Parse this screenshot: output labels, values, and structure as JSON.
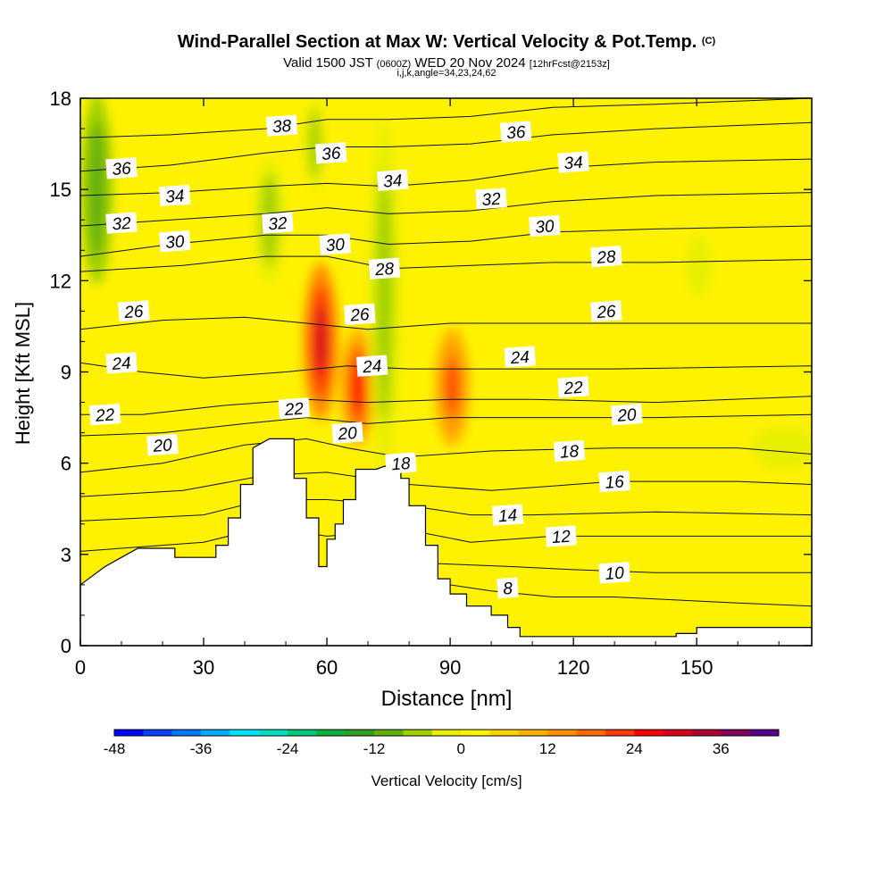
{
  "title": "Wind-Parallel Section at Max W: Vertical Velocity & Pot.Temp.",
  "title_tag": "(C)",
  "subtitle_a": "Valid 1500 JST",
  "subtitle_b": "(0600Z)",
  "subtitle_c": "WED 20 Nov 2024",
  "subtitle_d": "[12hrFcst@2153z]",
  "subtitle2": "i,j,k,angle=34,23,24,62",
  "chart_data": {
    "type": "heatmap",
    "xlabel": "Distance [nm]",
    "ylabel": "Height [Kft MSL]",
    "xlim": [
      0,
      178
    ],
    "ylim": [
      0,
      18
    ],
    "xticks": [
      0,
      30,
      60,
      90,
      120,
      150
    ],
    "yticks": [
      0,
      3,
      6,
      9,
      12,
      15,
      18
    ],
    "colorbar": {
      "label": "Vertical Velocity [cm/s]",
      "min": -48,
      "max": 42,
      "step": 4,
      "ticks": [
        -48,
        -36,
        -24,
        -12,
        0,
        12,
        24,
        36
      ],
      "colors": [
        "#0000ff",
        "#0a3fff",
        "#0077ff",
        "#00aaff",
        "#00e5ff",
        "#00e0c0",
        "#00c878",
        "#10b040",
        "#30a020",
        "#60b010",
        "#a0d000",
        "#e8ef00",
        "#fff200",
        "#ffd200",
        "#ffb000",
        "#ff9000",
        "#ff6a00",
        "#ff3c00",
        "#ff0000",
        "#d8001a",
        "#b00032",
        "#80005a",
        "#58008a"
      ]
    },
    "terrain": [
      [
        0,
        2.0
      ],
      [
        3,
        2.3
      ],
      [
        6,
        2.6
      ],
      [
        10,
        2.9
      ],
      [
        14,
        3.2
      ],
      [
        23,
        3.2
      ],
      [
        23,
        2.9
      ],
      [
        33,
        2.9
      ],
      [
        33,
        3.3
      ],
      [
        36,
        3.3
      ],
      [
        36,
        4.2
      ],
      [
        39,
        4.2
      ],
      [
        39,
        5.3
      ],
      [
        42,
        5.3
      ],
      [
        42,
        6.5
      ],
      [
        46,
        6.8
      ],
      [
        52,
        6.8
      ],
      [
        52,
        5.5
      ],
      [
        55,
        5.5
      ],
      [
        55,
        4.2
      ],
      [
        58,
        4.2
      ],
      [
        58,
        2.6
      ],
      [
        60,
        2.6
      ],
      [
        60,
        3.5
      ],
      [
        62,
        3.5
      ],
      [
        62,
        4.0
      ],
      [
        64,
        4.0
      ],
      [
        64,
        4.8
      ],
      [
        67,
        4.8
      ],
      [
        67,
        5.8
      ],
      [
        72,
        5.8
      ],
      [
        74,
        5.9
      ],
      [
        78,
        5.9
      ],
      [
        78,
        5.5
      ],
      [
        80,
        5.5
      ],
      [
        80,
        4.6
      ],
      [
        84,
        4.6
      ],
      [
        84,
        3.3
      ],
      [
        87,
        3.3
      ],
      [
        87,
        2.2
      ],
      [
        90,
        2.2
      ],
      [
        90,
        1.7
      ],
      [
        94,
        1.7
      ],
      [
        94,
        1.3
      ],
      [
        100,
        1.3
      ],
      [
        100,
        1.0
      ],
      [
        104,
        1.0
      ],
      [
        104,
        0.6
      ],
      [
        107,
        0.6
      ],
      [
        107,
        0.3
      ],
      [
        145,
        0.3
      ],
      [
        145,
        0.4
      ],
      [
        150,
        0.4
      ],
      [
        150,
        0.6
      ],
      [
        178,
        0.6
      ]
    ],
    "theta_contours": [
      {
        "label": "8",
        "line": [
          [
            85,
            2.1
          ],
          [
            100,
            1.8
          ],
          [
            115,
            1.6
          ],
          [
            130,
            1.6
          ],
          [
            145,
            1.5
          ],
          [
            160,
            1.4
          ],
          [
            178,
            1.3
          ]
        ],
        "at": [
          104,
          1.9
        ]
      },
      {
        "label": "10",
        "line": [
          [
            86,
            2.7
          ],
          [
            105,
            2.6
          ],
          [
            120,
            2.5
          ],
          [
            140,
            2.4
          ],
          [
            160,
            2.4
          ],
          [
            178,
            2.4
          ]
        ],
        "at": [
          130,
          2.4
        ]
      },
      {
        "label": "12",
        "line": [
          [
            0,
            3.1
          ],
          [
            30,
            3.4
          ],
          [
            45,
            3.9
          ],
          [
            60,
            3.6
          ],
          [
            80,
            3.8
          ],
          [
            95,
            3.4
          ],
          [
            115,
            3.6
          ],
          [
            140,
            3.6
          ],
          [
            178,
            3.6
          ]
        ],
        "at": [
          117,
          3.6
        ]
      },
      {
        "label": "14",
        "line": [
          [
            0,
            4.1
          ],
          [
            30,
            4.3
          ],
          [
            45,
            4.8
          ],
          [
            60,
            4.8
          ],
          [
            80,
            4.6
          ],
          [
            95,
            4.3
          ],
          [
            110,
            4.3
          ],
          [
            140,
            4.4
          ],
          [
            178,
            4.3
          ]
        ],
        "at": [
          104,
          4.3
        ]
      },
      {
        "label": "16",
        "line": [
          [
            0,
            4.9
          ],
          [
            25,
            5.1
          ],
          [
            45,
            5.6
          ],
          [
            60,
            5.7
          ],
          [
            80,
            5.3
          ],
          [
            100,
            5.1
          ],
          [
            130,
            5.4
          ],
          [
            160,
            5.4
          ],
          [
            178,
            5.3
          ]
        ],
        "at": [
          130,
          5.4
        ]
      },
      {
        "label": "18",
        "line": [
          [
            0,
            5.7
          ],
          [
            20,
            6.0
          ],
          [
            40,
            6.6
          ],
          [
            55,
            6.8
          ],
          [
            65,
            6.5
          ],
          [
            78,
            6.2
          ],
          [
            100,
            6.4
          ],
          [
            130,
            6.5
          ],
          [
            160,
            6.5
          ],
          [
            178,
            6.3
          ]
        ],
        "at": [
          119,
          6.4
        ]
      },
      {
        "label": "20",
        "line": [
          [
            0,
            6.9
          ],
          [
            20,
            7.0
          ],
          [
            40,
            7.3
          ],
          [
            55,
            7.5
          ],
          [
            70,
            7.3
          ],
          [
            90,
            7.5
          ],
          [
            110,
            7.5
          ],
          [
            140,
            7.5
          ],
          [
            178,
            7.6
          ]
        ],
        "at": [
          20,
          6.6
        ]
      },
      {
        "label": "22",
        "line": [
          [
            0,
            7.6
          ],
          [
            15,
            7.6
          ],
          [
            35,
            7.9
          ],
          [
            55,
            8.1
          ],
          [
            70,
            8.0
          ],
          [
            90,
            8.1
          ],
          [
            110,
            8.1
          ],
          [
            140,
            8.0
          ],
          [
            178,
            8.2
          ]
        ],
        "at": [
          6,
          7.6
        ]
      },
      {
        "label": "24",
        "line": [
          [
            0,
            9.3
          ],
          [
            15,
            9.0
          ],
          [
            30,
            8.8
          ],
          [
            50,
            9.0
          ],
          [
            65,
            9.2
          ],
          [
            80,
            9.1
          ],
          [
            100,
            9.1
          ],
          [
            130,
            9.1
          ],
          [
            178,
            9.2
          ]
        ],
        "at": [
          10,
          9.3
        ]
      },
      {
        "label": "26",
        "line": [
          [
            0,
            10.4
          ],
          [
            20,
            10.7
          ],
          [
            40,
            10.8
          ],
          [
            55,
            10.6
          ],
          [
            70,
            10.4
          ],
          [
            90,
            10.6
          ],
          [
            110,
            10.6
          ],
          [
            140,
            10.6
          ],
          [
            178,
            10.6
          ]
        ],
        "at": [
          13,
          11.0
        ]
      },
      {
        "label": "28",
        "line": [
          [
            0,
            12.3
          ],
          [
            25,
            12.5
          ],
          [
            45,
            12.8
          ],
          [
            60,
            12.8
          ],
          [
            75,
            12.4
          ],
          [
            95,
            12.5
          ],
          [
            115,
            12.6
          ],
          [
            140,
            12.6
          ],
          [
            178,
            12.7
          ]
        ],
        "at": [
          128,
          12.8
        ]
      },
      {
        "label": "30",
        "line": [
          [
            0,
            12.8
          ],
          [
            22,
            13.2
          ],
          [
            45,
            13.5
          ],
          [
            60,
            13.5
          ],
          [
            75,
            13.2
          ],
          [
            95,
            13.3
          ],
          [
            115,
            13.6
          ],
          [
            140,
            13.7
          ],
          [
            178,
            13.8
          ]
        ],
        "at": [
          23,
          13.3
        ]
      },
      {
        "label": "32",
        "line": [
          [
            0,
            13.8
          ],
          [
            22,
            14.0
          ],
          [
            45,
            14.2
          ],
          [
            60,
            14.4
          ],
          [
            75,
            14.2
          ],
          [
            95,
            14.3
          ],
          [
            115,
            14.6
          ],
          [
            140,
            14.8
          ],
          [
            178,
            14.9
          ]
        ],
        "at": [
          10,
          13.9
        ]
      },
      {
        "label": "34",
        "line": [
          [
            0,
            14.8
          ],
          [
            22,
            14.9
          ],
          [
            45,
            15.1
          ],
          [
            60,
            15.2
          ],
          [
            75,
            15.1
          ],
          [
            95,
            15.3
          ],
          [
            115,
            15.7
          ],
          [
            140,
            15.9
          ],
          [
            178,
            16.0
          ]
        ],
        "at": [
          23,
          14.8
        ]
      },
      {
        "label": "36",
        "line": [
          [
            0,
            15.6
          ],
          [
            22,
            15.8
          ],
          [
            45,
            16.2
          ],
          [
            60,
            16.4
          ],
          [
            75,
            16.4
          ],
          [
            95,
            16.5
          ],
          [
            115,
            16.8
          ],
          [
            140,
            17.0
          ],
          [
            178,
            17.2
          ]
        ],
        "at": [
          10,
          15.7
        ]
      },
      {
        "label": "38",
        "line": [
          [
            0,
            16.7
          ],
          [
            22,
            16.8
          ],
          [
            45,
            17.0
          ],
          [
            60,
            17.3
          ],
          [
            75,
            17.3
          ],
          [
            95,
            17.4
          ],
          [
            115,
            17.7
          ],
          [
            140,
            17.8
          ],
          [
            178,
            18.0
          ]
        ],
        "at": [
          49,
          17.1
        ]
      }
    ],
    "extra_labels": [
      {
        "label": "36",
        "at": [
          61,
          16.2
        ]
      },
      {
        "label": "34",
        "at": [
          76,
          15.3
        ]
      },
      {
        "label": "32",
        "at": [
          48,
          13.9
        ]
      },
      {
        "label": "30",
        "at": [
          62,
          13.2
        ]
      },
      {
        "label": "28",
        "at": [
          74,
          12.4
        ]
      },
      {
        "label": "26",
        "at": [
          68,
          10.9
        ]
      },
      {
        "label": "24",
        "at": [
          71,
          9.2
        ]
      },
      {
        "label": "22",
        "at": [
          52,
          7.8
        ]
      },
      {
        "label": "20",
        "at": [
          65,
          7.0
        ]
      },
      {
        "label": "18",
        "at": [
          78,
          6.0
        ]
      },
      {
        "label": "36",
        "at": [
          106,
          16.9
        ]
      },
      {
        "label": "34",
        "at": [
          120,
          15.9
        ]
      },
      {
        "label": "32",
        "at": [
          100,
          14.7
        ]
      },
      {
        "label": "30",
        "at": [
          113,
          13.8
        ]
      },
      {
        "label": "26",
        "at": [
          128,
          11.0
        ]
      },
      {
        "label": "24",
        "at": [
          107,
          9.5
        ]
      },
      {
        "label": "22",
        "at": [
          120,
          8.5
        ]
      },
      {
        "label": "20",
        "at": [
          133,
          7.6
        ]
      },
      {
        "label": "16",
        "at": [
          130,
          5.4
        ]
      },
      {
        "label": "10",
        "at": [
          130,
          2.4
        ]
      }
    ],
    "w_features": [
      {
        "kind": "updraft",
        "value": 28,
        "x": [
          56,
          61
        ],
        "y": [
          8.0,
          12.0
        ]
      },
      {
        "kind": "updraft",
        "value": 24,
        "x": [
          65,
          70
        ],
        "y": [
          7.0,
          10.0
        ]
      },
      {
        "kind": "updraft",
        "value": 20,
        "x": [
          88,
          93
        ],
        "y": [
          7.0,
          10.0
        ]
      },
      {
        "kind": "downdraft",
        "value": -12,
        "x": [
          1,
          7
        ],
        "y": [
          12.0,
          18.0
        ]
      },
      {
        "kind": "downdraft",
        "value": -8,
        "x": [
          43,
          49
        ],
        "y": [
          12.0,
          16.0
        ]
      },
      {
        "kind": "downdraft",
        "value": -8,
        "x": [
          71,
          77
        ],
        "y": [
          6.0,
          17.0
        ]
      },
      {
        "kind": "downdraft",
        "value": -8,
        "x": [
          55,
          59
        ],
        "y": [
          15.0,
          18.0
        ]
      },
      {
        "kind": "downdraft",
        "value": -4,
        "x": [
          148,
          153
        ],
        "y": [
          11.5,
          13.5
        ]
      },
      {
        "kind": "downdraft",
        "value": -4,
        "x": [
          165,
          178
        ],
        "y": [
          5.8,
          7.2
        ]
      }
    ]
  }
}
